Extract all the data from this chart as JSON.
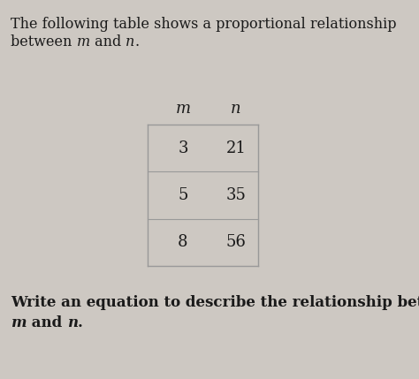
{
  "background_color": "#cdc8c2",
  "title_line1": "The following table shows a proportional relationship",
  "title_line2_normal": "between ",
  "title_line2_italic1": "m",
  "title_line2_mid": " and ",
  "title_line2_italic2": "n",
  "title_line2_end": ".",
  "col_header_m": "m",
  "col_header_n": "n",
  "rows": [
    [
      "3",
      "21"
    ],
    [
      "5",
      "35"
    ],
    [
      "8",
      "56"
    ]
  ],
  "footer_bold": "Write an equation to describe the relationship between",
  "footer_italic1": "m",
  "footer_mid": " and ",
  "footer_italic2": "n",
  "footer_end": ".",
  "text_color": "#1a1a1a",
  "table_border_color": "#999999",
  "font_size_title": 11.5,
  "font_size_table": 13,
  "font_size_footer": 12
}
